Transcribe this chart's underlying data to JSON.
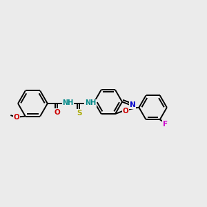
{
  "background_color": "#ebebeb",
  "figsize": [
    3.0,
    3.0
  ],
  "dpi": 100,
  "atom_colors": {
    "C": "#000000",
    "N": "#0000cc",
    "O": "#cc0000",
    "S": "#aaaa00",
    "F": "#cc00cc",
    "NH": "#008888"
  },
  "bond_color": "#000000",
  "bond_width": 1.4,
  "font_size": 7.5
}
